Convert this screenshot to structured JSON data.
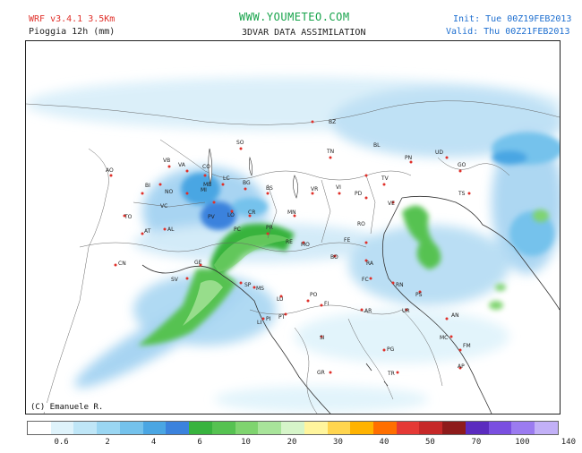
{
  "header": {
    "model": "WRF v3.4.1  3.5Km",
    "variable": "Pioggia 12h (mm)",
    "website": "WWW.YOUMETEO.COM",
    "assimilation": "3DVAR DATA ASSIMILATION",
    "init": "Init: Tue 00Z19FEB2013",
    "valid": "Valid: Thu 00Z21FEB2013"
  },
  "credit": "(C) Emanuele R.",
  "legend": {
    "unit": "mm",
    "colors": [
      "#ffffff",
      "#dff3fb",
      "#bfe6f7",
      "#9ad6f2",
      "#74c2ec",
      "#4aa6e3",
      "#3b82dd",
      "#38b33e",
      "#56c251",
      "#7fd46f",
      "#a8e49a",
      "#d6f5c9",
      "#fff59d",
      "#ffd54f",
      "#ffb300",
      "#ff6f00",
      "#e53935",
      "#c62828",
      "#8e1b1b",
      "#5b2bbf",
      "#7a4fe0",
      "#9b7bf0",
      "#c2b0f7"
    ],
    "tick_labels": [
      "0.6",
      "2",
      "4",
      "6",
      "10",
      "20",
      "30",
      "40",
      "50",
      "70",
      "100",
      "140"
    ]
  },
  "cities": [
    "AO",
    "VB",
    "VA",
    "CO",
    "SO",
    "LC",
    "BG",
    "BS",
    "TN",
    "BZ",
    "BL",
    "PN",
    "UD",
    "GO",
    "TS",
    "TV",
    "VE",
    "PD",
    "VI",
    "VR",
    "MN",
    "CR",
    "LO",
    "PV",
    "MI",
    "MB",
    "NO",
    "BI",
    "VC",
    "TO",
    "AT",
    "AL",
    "CN",
    "SV",
    "GE",
    "SP",
    "MS",
    "LU",
    "PT",
    "PI",
    "LI",
    "FI",
    "PO",
    "AR",
    "SI",
    "GR",
    "PR",
    "PC",
    "RE",
    "MO",
    "BO",
    "FE",
    "RO",
    "RA",
    "FC",
    "RN",
    "PS",
    "UR",
    "AN",
    "MC",
    "FM",
    "AP",
    "PG",
    "TR"
  ]
}
